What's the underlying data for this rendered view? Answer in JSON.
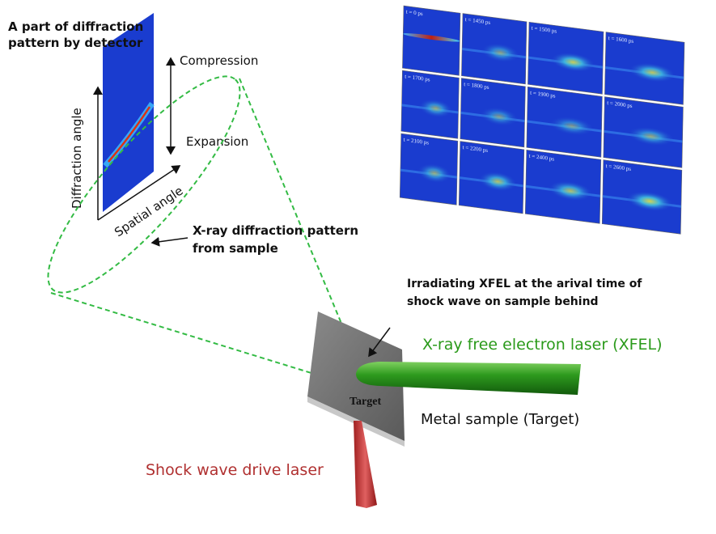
{
  "detector_title": [
    "A part of diffraction",
    "pattern by detector"
  ],
  "axis_diffraction": "Diffraction angle",
  "axis_spatial": "Spatial angle",
  "compression": "Compression",
  "expansion": "Expansion",
  "xray_pattern": [
    "X-ray diffraction pattern",
    "from sample"
  ],
  "irradiating": [
    "Irradiating XFEL at the arival time of",
    "shock wave on sample behind"
  ],
  "xfel": "X-ray free electron laser (XFEL)",
  "target": "Target",
  "metal_sample": "Metal sample (Target)",
  "drive_laser": "Shock wave drive laser",
  "panels": [
    "t = 0 ps",
    "t = 1450 ps",
    "t = 1500 ps",
    "t = 1600 ps",
    "t = 1700 ps",
    "t = 1800 ps",
    "t = 1900 ps",
    "t = 2000 ps",
    "t = 2100 ps",
    "t = 2200 ps",
    "t = 2400 ps",
    "t = 2600 ps"
  ],
  "colors": {
    "xfel": "#2a9a1a",
    "drive_laser": "#b03030",
    "dashed": "#33bb44",
    "panel_bg": "#1a3ccf"
  }
}
